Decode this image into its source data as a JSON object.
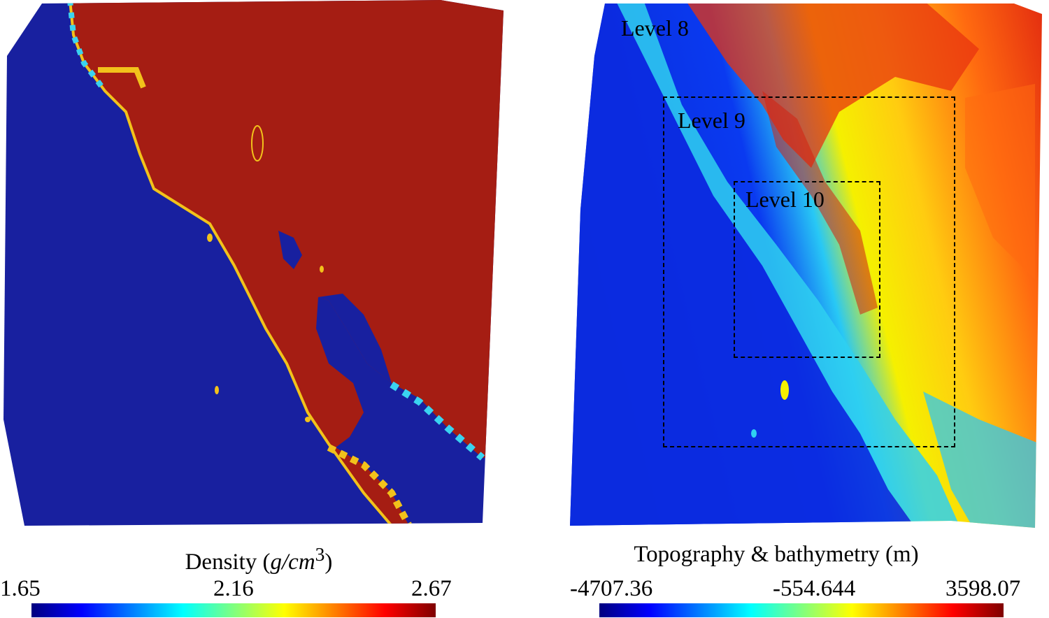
{
  "left_map": {
    "title_text": "Density (",
    "title_unit": "g/cm",
    "title_exp": "3",
    "title_close": ")",
    "colorbar": {
      "min": "1.65",
      "mid": "2.16",
      "max": "2.67"
    },
    "colors": {
      "low": "#1a22a8",
      "high": "#a51d13",
      "coast": "#f2c21b"
    }
  },
  "right_map": {
    "title": "Topography & bathymetry (m)",
    "colorbar": {
      "min": "-4707.36",
      "mid": "-554.644",
      "max": "3598.07"
    },
    "levels": [
      {
        "label": "Level 8"
      },
      {
        "label": "Level 9"
      },
      {
        "label": "Level 10"
      }
    ]
  },
  "colormap": [
    "#00007f",
    "#0000ff",
    "#007fff",
    "#00ffff",
    "#7fff7f",
    "#ffff00",
    "#ff7f00",
    "#ff0000",
    "#7f0000"
  ]
}
